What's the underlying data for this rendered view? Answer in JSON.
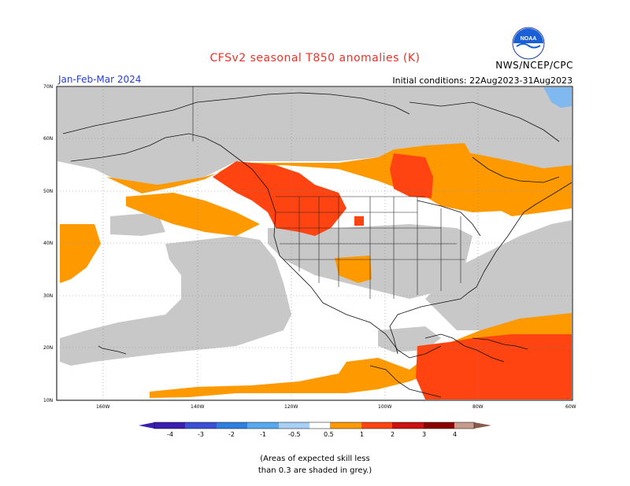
{
  "header": {
    "title": "CFSv2 seasonal T850 anomalies (K)",
    "credit": "NWS/NCEP/CPC",
    "period": "Jan-Feb-Mar 2024",
    "initial_conditions": "Initial conditions: 22Aug2023-31Aug2023",
    "logo_text": "NOAA"
  },
  "axes": {
    "lat_labels": [
      "70N",
      "60N",
      "50N",
      "40N",
      "30N",
      "20N",
      "10N"
    ],
    "lon_labels": [
      "160W",
      "140W",
      "120W",
      "100W",
      "80W",
      "60W"
    ]
  },
  "colorbar": {
    "labels": [
      "-4",
      "-3",
      "-2",
      "-1",
      "-0.5",
      "0.5",
      "1",
      "2",
      "3",
      "4"
    ],
    "colors": [
      "#3a1fb0",
      "#3b4fd6",
      "#2f7fe0",
      "#58a8f0",
      "#a7cff7",
      "#ffffff",
      "#ff9900",
      "#ff4411",
      "#cc1111",
      "#8b0000",
      "#c79c8c",
      "#8a5a4a"
    ]
  },
  "legend_colors": {
    "grey": "#c8c8c8",
    "orange": "#ff9900",
    "red_orange": "#ff4411",
    "light_blue": "#80b8f0"
  },
  "note": "(Areas of expected skill less\nthan 0.3 are shaded in grey.)"
}
